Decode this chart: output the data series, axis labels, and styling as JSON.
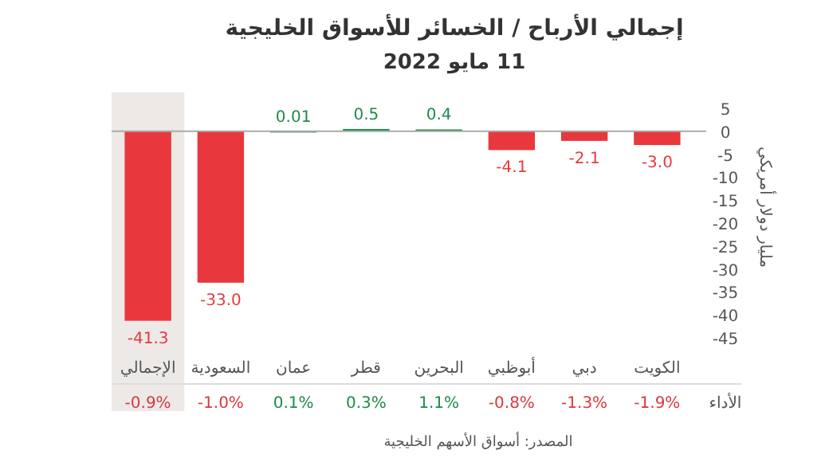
{
  "chart_data": {
    "type": "bar",
    "title": "إجمالي الأرباح / الخسائر للأسواق الخليجية",
    "subtitle": "11 مايو 2022",
    "ylabel": "مليار دولار أمريكي",
    "categories": [
      "الإجمالي",
      "السعودية",
      "عمان",
      "قطر",
      "البحرين",
      "أبوظبي",
      "دبي",
      "الكويت"
    ],
    "values": [
      -41.3,
      -33.0,
      0.01,
      0.5,
      0.4,
      -4.1,
      -2.1,
      -3.0
    ],
    "colors": [
      "#e8383d",
      "#e8383d",
      "#1e8a4a",
      "#1e8a4a",
      "#1e8a4a",
      "#e8383d",
      "#e8383d",
      "#e8383d"
    ],
    "value_labels": [
      "-41.3",
      "-33.0",
      "0.01",
      "0.5",
      "0.4",
      "-4.1",
      "-2.1",
      "-3.0"
    ],
    "ylim": [
      -45,
      5
    ],
    "yticks": [
      5,
      0,
      -5,
      -10,
      -15,
      -20,
      -25,
      -30,
      -35,
      -40,
      -45
    ],
    "bands": [
      {
        "axis": "x",
        "from": "الإجمالي",
        "to": "الإجمالي",
        "color": "#ece9e6"
      }
    ],
    "annotations": [
      "الأداء",
      "-0.9%",
      "-1.0%",
      "0.1%",
      "0.3%",
      "1.1%",
      "-0.8%",
      "-1.3%",
      "-1.9%",
      "المصدر: أسواق الأسهم الخليجية"
    ]
  }
}
